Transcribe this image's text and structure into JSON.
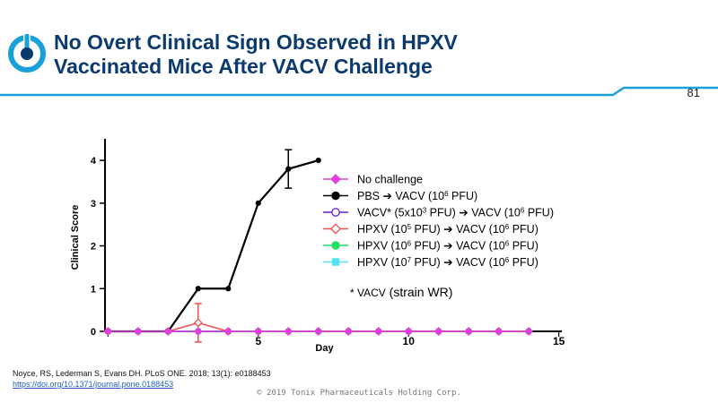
{
  "slide": {
    "title_line1": "No Overt Clinical Sign Observed in HPXV",
    "title_line2": "Vaccinated Mice After VACV Challenge",
    "page_number": "81",
    "citation": "Noyce, RS, Lederman S, Evans DH. PLoS ONE. 2018; 13(1): e0188453",
    "doi": "https://doi.org/10.1371/journal.pone.0188453",
    "footer": "© 2019 Tonix Pharmaceuticals Holding Corp.",
    "accent_color": "#1aa0d8",
    "title_color": "#0b3a6e"
  },
  "chart_data": {
    "type": "line",
    "xlabel": "Day",
    "ylabel": "Clinical Score",
    "xlim": [
      -0.1,
      15.1
    ],
    "ylim": [
      0,
      4.4
    ],
    "x_ticks": [
      "5",
      "10",
      "15"
    ],
    "y_ticks": [
      "0",
      "1",
      "2",
      "3",
      "4"
    ],
    "legend_position": "right",
    "series": [
      {
        "name_parts": [
          "No challenge"
        ],
        "color": "#e040e0",
        "marker": "diamond-filled",
        "x": [
          0,
          1,
          2,
          3,
          4,
          5,
          6,
          7,
          8,
          9,
          10,
          11,
          12,
          13,
          14
        ],
        "y": [
          0,
          0,
          0,
          0,
          0,
          0,
          0,
          0,
          0,
          0,
          0,
          0,
          0,
          0,
          0
        ]
      },
      {
        "name_parts": [
          "PBS  ➔  VACV (10",
          "6",
          " PFU)"
        ],
        "color": "#000000",
        "marker": "circle-filled",
        "x": [
          0,
          1,
          2,
          3,
          4,
          5,
          6,
          7
        ],
        "y": [
          0,
          0,
          0,
          1,
          1,
          3,
          3.8,
          4
        ],
        "err": [
          0,
          0,
          0,
          0,
          0,
          0,
          0.45,
          0
        ]
      },
      {
        "name_parts": [
          "VACV*  (5x10",
          "3",
          " PFU) ➔ VACV (10",
          "6",
          " PFU)"
        ],
        "color": "#6a1fd0",
        "marker": "circle-open",
        "x": [
          0,
          1,
          2,
          3,
          4,
          5,
          6,
          7,
          8,
          9,
          10,
          11,
          12,
          13,
          14
        ],
        "y": [
          0,
          0,
          0,
          0,
          0,
          0,
          0,
          0,
          0,
          0,
          0,
          0,
          0,
          0,
          0
        ]
      },
      {
        "name_parts": [
          "HPXV (10",
          "5",
          " PFU) ➔ VACV (10",
          "6",
          " PFU)"
        ],
        "color": "#f05050",
        "marker": "diamond-open",
        "x": [
          0,
          1,
          2,
          3,
          4,
          5,
          6,
          7,
          8,
          9,
          10,
          11,
          12,
          13,
          14
        ],
        "y": [
          0,
          0,
          0,
          0.2,
          0,
          0,
          0,
          0,
          0,
          0,
          0,
          0,
          0,
          0,
          0
        ],
        "err": [
          0,
          0,
          0,
          0.45,
          0,
          0,
          0,
          0,
          0,
          0,
          0,
          0,
          0,
          0,
          0
        ]
      },
      {
        "name_parts": [
          "HPXV (10",
          "6",
          " PFU) ➔ VACV (10",
          "6",
          " PFU)"
        ],
        "color": "#22dd66",
        "marker": "circle-filled",
        "x": [
          0,
          1,
          2,
          3,
          4,
          5,
          6,
          7,
          8,
          9,
          10,
          11,
          12,
          13,
          14
        ],
        "y": [
          0,
          0,
          0,
          0,
          0,
          0,
          0,
          0,
          0,
          0,
          0,
          0,
          0,
          0,
          0
        ]
      },
      {
        "name_parts": [
          "HPXV (10",
          "7",
          " PFU) ➔ VACV (10",
          "6",
          " PFU)"
        ],
        "color": "#55e0f0",
        "marker": "square-filled",
        "x": [
          0,
          1,
          2,
          3,
          4,
          5,
          6,
          7,
          8,
          9,
          10,
          11,
          12,
          13,
          14
        ],
        "y": [
          0,
          0,
          0,
          0,
          0,
          0,
          0,
          0,
          0,
          0,
          0,
          0,
          0,
          0,
          0
        ]
      }
    ],
    "annotation_parts": [
      "* VACV",
      " (strain WR)"
    ]
  }
}
